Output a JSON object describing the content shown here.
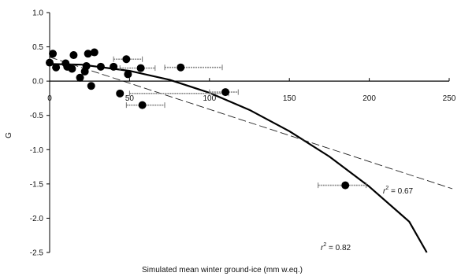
{
  "chart_data": {
    "type": "scatter",
    "xlabel": "Simulated mean winter ground-ice (mm w.eq.)",
    "ylabel": "G",
    "xlim": [
      0,
      250
    ],
    "ylim": [
      -2.5,
      1.0
    ],
    "x_ticks": [
      "0",
      "50",
      "100",
      "150",
      "200",
      "250"
    ],
    "y_ticks": [
      "1.0",
      "0.5",
      "0.0",
      "-0.5",
      "-1.0",
      "-1.5",
      "-2.0",
      "-2.5"
    ],
    "grid": false,
    "points": [
      {
        "x": 0,
        "y": 0.27
      },
      {
        "x": 2,
        "y": 0.4
      },
      {
        "x": 4,
        "y": 0.2
      },
      {
        "x": 10,
        "y": 0.26
      },
      {
        "x": 11,
        "y": 0.21
      },
      {
        "x": 14,
        "y": 0.18
      },
      {
        "x": 15,
        "y": 0.38
      },
      {
        "x": 19,
        "y": 0.05
      },
      {
        "x": 22,
        "y": 0.14
      },
      {
        "x": 23,
        "y": 0.22
      },
      {
        "x": 24,
        "y": 0.4
      },
      {
        "x": 26,
        "y": -0.07
      },
      {
        "x": 28,
        "y": 0.42
      },
      {
        "x": 32,
        "y": 0.21
      },
      {
        "x": 40,
        "y": 0.21
      },
      {
        "x": 48,
        "y": 0.32
      },
      {
        "x": 49,
        "y": 0.1
      },
      {
        "x": 44,
        "y": -0.18
      },
      {
        "x": 57,
        "y": 0.19
      },
      {
        "x": 58,
        "y": -0.35
      },
      {
        "x": 82,
        "y": 0.2
      },
      {
        "x": 110,
        "y": -0.16
      },
      {
        "x": 185,
        "y": -1.52
      }
    ],
    "error_bars": [
      {
        "x": 50,
        "y": 0.32,
        "xmin": 40,
        "xmax": 58
      },
      {
        "x": 57,
        "y": 0.19,
        "xmin": 44,
        "xmax": 66
      },
      {
        "x": 82,
        "y": 0.2,
        "xmin": 72,
        "xmax": 108
      },
      {
        "x": 60,
        "y": -0.18,
        "xmin": 50,
        "xmax": 112
      },
      {
        "x": 58,
        "y": -0.35,
        "xmin": 48,
        "xmax": 72
      },
      {
        "x": 110,
        "y": -0.16,
        "xmin": 100,
        "xmax": 118
      },
      {
        "x": 185,
        "y": -1.52,
        "xmin": 168,
        "xmax": 198
      }
    ],
    "fits": [
      {
        "style": "solid",
        "annotation": "r² = 0.82",
        "x": [
          0,
          20,
          50,
          75,
          100,
          125,
          150,
          175,
          200,
          225,
          236
        ],
        "y": [
          0.25,
          0.24,
          0.15,
          0.02,
          -0.17,
          -0.42,
          -0.73,
          -1.1,
          -1.54,
          -2.05,
          -2.5
        ]
      },
      {
        "style": "dashed",
        "annotation": "r² = 0.67",
        "x": [
          0,
          252
        ],
        "y": [
          0.35,
          -1.57
        ]
      }
    ]
  }
}
